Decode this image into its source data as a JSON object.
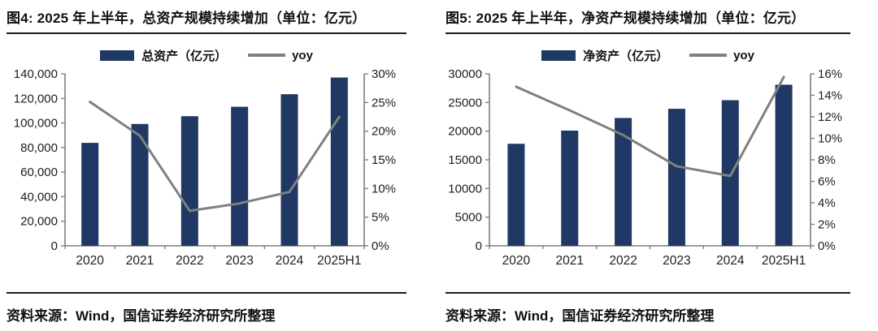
{
  "colors": {
    "bar": "#1f3864",
    "line": "#808080",
    "axis": "#7f7f7f",
    "tick_text": "#1d1d1d",
    "divider": "#1c1c1c"
  },
  "charts": [
    {
      "title": "图4: 2025 年上半年，总资产规模持续增加（单位：亿元）",
      "legend": [
        {
          "type": "bar",
          "label": "总资产（亿元）"
        },
        {
          "type": "line",
          "label": "yoy"
        }
      ],
      "source": "资料来源：Wind，国信证券经济研究所整理",
      "chart_data": {
        "type": "bar+line",
        "categories": [
          "2020",
          "2021",
          "2022",
          "2023",
          "2024",
          "2025H1"
        ],
        "series": [
          {
            "name": "总资产（亿元）",
            "type": "bar",
            "axis": "left",
            "values": [
              83800,
              99200,
              105500,
              113200,
              123400,
              137000
            ]
          },
          {
            "name": "yoy",
            "type": "line",
            "axis": "right",
            "values": [
              25.1,
              19.2,
              6.1,
              7.4,
              9.4,
              22.5
            ]
          }
        ],
        "y_left": {
          "min": 0,
          "max": 140000,
          "tick_labels": [
            "0",
            "20,000",
            "40,000",
            "60,000",
            "80,000",
            "100,000",
            "120,000",
            "140,000"
          ]
        },
        "y_right": {
          "min": 0,
          "max": 30,
          "tick_labels": [
            "0%",
            "5%",
            "10%",
            "15%",
            "20%",
            "25%",
            "30%"
          ]
        },
        "grid": false,
        "legend_position": "top"
      }
    },
    {
      "title": "图5: 2025 年上半年，净资产规模持续增加（单位：亿元）",
      "legend": [
        {
          "type": "bar",
          "label": "净资产（亿元）"
        },
        {
          "type": "line",
          "label": "yoy"
        }
      ],
      "source": "资料来源：Wind，国信证券经济研究所整理",
      "chart_data": {
        "type": "bar+line",
        "categories": [
          "2020",
          "2021",
          "2022",
          "2023",
          "2024",
          "2025H1"
        ],
        "series": [
          {
            "name": "净资产（亿元）",
            "type": "bar",
            "axis": "left",
            "values": [
              17800,
              20100,
              22300,
              23900,
              25400,
              28100
            ]
          },
          {
            "name": "yoy",
            "type": "line",
            "axis": "right",
            "values": [
              14.8,
              12.6,
              10.3,
              7.4,
              6.5,
              15.7
            ]
          }
        ],
        "y_left": {
          "min": 0,
          "max": 30000,
          "tick_labels": [
            "0",
            "5000",
            "10000",
            "15000",
            "20000",
            "25000",
            "30000"
          ]
        },
        "y_right": {
          "min": 0,
          "max": 16,
          "tick_labels": [
            "0%",
            "2%",
            "4%",
            "6%",
            "8%",
            "10%",
            "12%",
            "14%",
            "16%"
          ]
        },
        "grid": false,
        "legend_position": "top"
      }
    }
  ]
}
